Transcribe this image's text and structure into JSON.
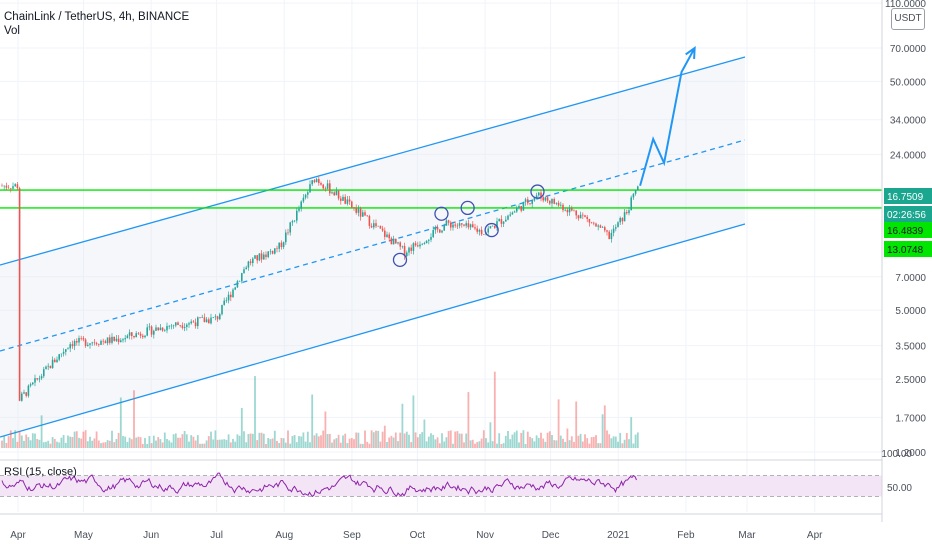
{
  "header": {
    "title": "ChainLink / TetherUS, 4h, BINANCE",
    "volume_label": "Vol"
  },
  "rsi_label": "RSI (15, close)",
  "price_axis": {
    "currency": "USDT",
    "ticks": [
      "110.0000",
      "70.0000",
      "50.0000",
      "34.0000",
      "24.0000",
      "7.0000",
      "5.0000",
      "3.5000",
      "2.5000",
      "1.7000",
      "1.2000"
    ],
    "badges": [
      {
        "text": "16.7509",
        "bg": "#1aa68f",
        "fg": "#ffffff"
      },
      {
        "text": "02:26:56",
        "bg": "#1aa68f",
        "fg": "#ffffff"
      },
      {
        "text": "16.4839",
        "bg": "#00e600",
        "fg": "#131722"
      },
      {
        "text": "13.0748",
        "bg": "#00e600",
        "fg": "#131722"
      }
    ]
  },
  "rsi_axis": {
    "ticks": [
      "100.00",
      "50.00"
    ]
  },
  "time_axis": {
    "labels": [
      "Apr",
      "May",
      "Jun",
      "Jul",
      "Aug",
      "Sep",
      "Oct",
      "Nov",
      "Dec",
      "2021",
      "Feb",
      "Mar",
      "Apr"
    ]
  },
  "colors": {
    "channel": "#2196f3",
    "horizontal_levels": "#00e600",
    "candle_up": "#26a69a",
    "candle_down": "#ef5350",
    "rsi_line": "#8e24aa",
    "rsi_band": "#f3e5f5",
    "marker_circle": "#3f51b5"
  },
  "chart_data": {
    "type": "candlestick",
    "symbol": "ChainLink / TetherUS",
    "interval": "4h",
    "exchange": "BINANCE",
    "y_scale": "log",
    "ylim": [
      1.2,
      110
    ],
    "x_range": [
      "2020-04-01",
      "2021-04-30"
    ],
    "price_path": [
      {
        "date": "2020-04-01",
        "close": 2.0
      },
      {
        "date": "2020-04-25",
        "close": 3.6
      },
      {
        "date": "2020-05-15",
        "close": 3.7
      },
      {
        "date": "2020-06-10",
        "close": 4.3
      },
      {
        "date": "2020-07-01",
        "close": 4.6
      },
      {
        "date": "2020-07-15",
        "close": 8.0
      },
      {
        "date": "2020-07-30",
        "close": 9.5
      },
      {
        "date": "2020-08-15",
        "close": 19.0
      },
      {
        "date": "2020-08-25",
        "close": 16.0
      },
      {
        "date": "2020-09-10",
        "close": 12.0
      },
      {
        "date": "2020-09-25",
        "close": 9.0
      },
      {
        "date": "2020-10-15",
        "close": 12.0
      },
      {
        "date": "2020-11-01",
        "close": 11.0
      },
      {
        "date": "2020-11-25",
        "close": 16.0
      },
      {
        "date": "2020-12-15",
        "close": 13.0
      },
      {
        "date": "2020-12-28",
        "close": 10.5
      },
      {
        "date": "2021-01-05",
        "close": 13.5
      },
      {
        "date": "2021-01-10",
        "close": 17.5
      }
    ],
    "horizontal_levels": [
      16.75,
      14.0
    ],
    "forecast_arrow": [
      {
        "date": "2021-01-11",
        "value": 17.5
      },
      {
        "date": "2021-01-17",
        "value": 28.0
      },
      {
        "date": "2021-01-22",
        "value": 22.0
      },
      {
        "date": "2021-01-30",
        "value": 55.0
      },
      {
        "date": "2021-02-05",
        "value": 70.0
      }
    ],
    "marked_points": [
      {
        "date": "2020-09-23",
        "value": 8.3
      },
      {
        "date": "2020-10-12",
        "value": 13.2
      },
      {
        "date": "2020-10-24",
        "value": 14.0
      },
      {
        "date": "2020-11-04",
        "value": 11.2
      },
      {
        "date": "2020-11-25",
        "value": 16.5
      }
    ],
    "rsi": {
      "period": 15,
      "source": "close",
      "ylim": [
        0,
        100
      ],
      "band": [
        30,
        70
      ]
    }
  }
}
